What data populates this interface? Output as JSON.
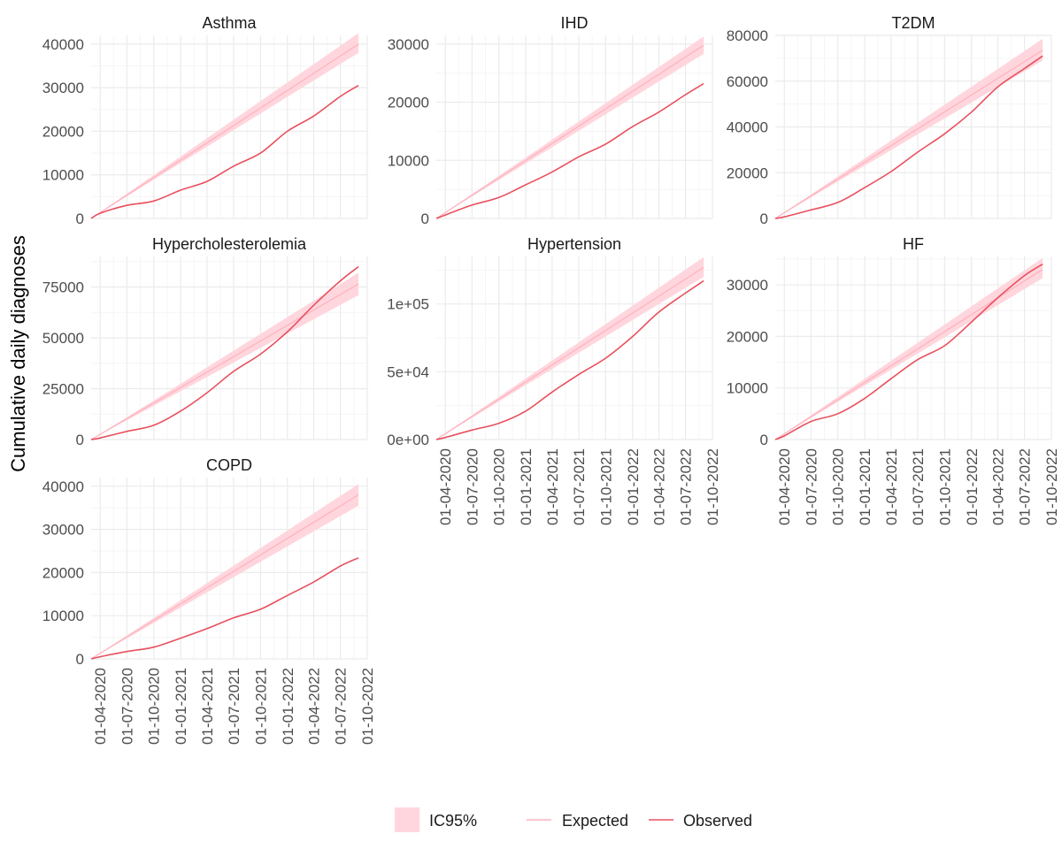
{
  "chart_data": {
    "type": "line",
    "ylabel": "Cumulative daily diagnoses",
    "xlabel": "",
    "x_ticks": [
      "01-04-2020",
      "01-07-2020",
      "01-10-2020",
      "01-01-2021",
      "01-04-2021",
      "01-07-2021",
      "01-10-2021",
      "01-01-2022",
      "01-04-2022",
      "01-07-2022",
      "01-10-2022"
    ],
    "x_range": [
      "2020-03-01",
      "2022-10-01"
    ],
    "legend": {
      "placement": "bottom",
      "items": [
        {
          "label": "IC95%",
          "kind": "ribbon",
          "color": "#ffd6dd"
        },
        {
          "label": "Expected",
          "kind": "line",
          "color": "#ffb3bf"
        },
        {
          "label": "Observed",
          "kind": "line",
          "color": "#e8505e"
        }
      ]
    },
    "colors": {
      "ribbon": "#ffd6dd",
      "expected": "#ffb3bf",
      "observed": "#e8505e",
      "grid_major": "#ebebeb",
      "grid_minor": "#f5f5f5"
    },
    "panels": [
      {
        "title": "Asthma",
        "ylim": [
          0,
          42000
        ],
        "y_ticks": [
          0,
          10000,
          20000,
          30000,
          40000
        ],
        "y_tick_labels": [
          "0",
          "10000",
          "20000",
          "30000",
          "40000"
        ],
        "expected": [
          [
            "2020-03-01",
            0
          ],
          [
            "2022-09-01",
            40000
          ]
        ],
        "ic_low": [
          [
            "2020-03-01",
            0
          ],
          [
            "2022-09-01",
            38000
          ]
        ],
        "ic_high": [
          [
            "2020-03-01",
            0
          ],
          [
            "2022-09-01",
            42500
          ]
        ],
        "observed": [
          [
            "2020-03-01",
            0
          ],
          [
            "2020-04-01",
            1200
          ],
          [
            "2020-07-01",
            3000
          ],
          [
            "2020-10-01",
            4000
          ],
          [
            "2021-01-01",
            6500
          ],
          [
            "2021-04-01",
            8500
          ],
          [
            "2021-07-01",
            12000
          ],
          [
            "2021-10-01",
            15000
          ],
          [
            "2022-01-01",
            20000
          ],
          [
            "2022-04-01",
            23500
          ],
          [
            "2022-07-01",
            28000
          ],
          [
            "2022-09-01",
            30500
          ]
        ]
      },
      {
        "title": "IHD",
        "ylim": [
          0,
          31500
        ],
        "y_ticks": [
          0,
          10000,
          20000,
          30000
        ],
        "y_tick_labels": [
          "0",
          "10000",
          "20000",
          "30000"
        ],
        "expected": [
          [
            "2020-03-01",
            0
          ],
          [
            "2022-09-01",
            29800
          ]
        ],
        "ic_low": [
          [
            "2020-03-01",
            0
          ],
          [
            "2022-09-01",
            28300
          ]
        ],
        "ic_high": [
          [
            "2020-03-01",
            0
          ],
          [
            "2022-09-01",
            31300
          ]
        ],
        "observed": [
          [
            "2020-03-01",
            0
          ],
          [
            "2020-04-01",
            600
          ],
          [
            "2020-07-01",
            2300
          ],
          [
            "2020-10-01",
            3600
          ],
          [
            "2021-01-01",
            5800
          ],
          [
            "2021-04-01",
            8000
          ],
          [
            "2021-07-01",
            10600
          ],
          [
            "2021-10-01",
            12800
          ],
          [
            "2022-01-01",
            15800
          ],
          [
            "2022-04-01",
            18300
          ],
          [
            "2022-07-01",
            21300
          ],
          [
            "2022-09-01",
            23200
          ]
        ]
      },
      {
        "title": "T2DM",
        "ylim": [
          0,
          80000
        ],
        "y_ticks": [
          0,
          20000,
          40000,
          60000,
          80000
        ],
        "y_tick_labels": [
          "0",
          "20000",
          "40000",
          "60000",
          "80000"
        ],
        "expected": [
          [
            "2020-03-01",
            0
          ],
          [
            "2022-09-01",
            73500
          ]
        ],
        "ic_low": [
          [
            "2020-03-01",
            0
          ],
          [
            "2022-09-01",
            69000
          ]
        ],
        "ic_high": [
          [
            "2020-03-01",
            0
          ],
          [
            "2022-09-01",
            78500
          ]
        ],
        "observed": [
          [
            "2020-03-01",
            0
          ],
          [
            "2020-04-01",
            700
          ],
          [
            "2020-07-01",
            3700
          ],
          [
            "2020-10-01",
            7000
          ],
          [
            "2021-01-01",
            13500
          ],
          [
            "2021-04-01",
            20500
          ],
          [
            "2021-07-01",
            29000
          ],
          [
            "2021-10-01",
            37000
          ],
          [
            "2022-01-01",
            46500
          ],
          [
            "2022-04-01",
            57500
          ],
          [
            "2022-07-01",
            65500
          ],
          [
            "2022-09-01",
            71000
          ]
        ]
      },
      {
        "title": "Hypercholesterolemia",
        "ylim": [
          0,
          90000
        ],
        "y_ticks": [
          0,
          25000,
          50000,
          75000
        ],
        "y_tick_labels": [
          "0",
          "25000",
          "50000",
          "75000"
        ],
        "expected": [
          [
            "2020-03-01",
            0
          ],
          [
            "2022-09-01",
            76500
          ]
        ],
        "ic_low": [
          [
            "2020-03-01",
            0
          ],
          [
            "2022-09-01",
            71000
          ]
        ],
        "ic_high": [
          [
            "2020-03-01",
            0
          ],
          [
            "2022-09-01",
            82000
          ]
        ],
        "observed": [
          [
            "2020-03-01",
            0
          ],
          [
            "2020-04-01",
            800
          ],
          [
            "2020-07-01",
            4000
          ],
          [
            "2020-10-01",
            7000
          ],
          [
            "2021-01-01",
            14000
          ],
          [
            "2021-04-01",
            23000
          ],
          [
            "2021-07-01",
            33500
          ],
          [
            "2021-10-01",
            42000
          ],
          [
            "2022-01-01",
            53000
          ],
          [
            "2022-04-01",
            66000
          ],
          [
            "2022-07-01",
            78000
          ],
          [
            "2022-09-01",
            85000
          ]
        ]
      },
      {
        "title": "Hypertension",
        "ylim": [
          0,
          135000
        ],
        "y_ticks": [
          0,
          50000,
          100000
        ],
        "y_tick_labels": [
          "0e+00",
          "5e+04",
          "1e+05"
        ],
        "expected": [
          [
            "2020-03-01",
            0
          ],
          [
            "2022-09-01",
            127000
          ]
        ],
        "ic_low": [
          [
            "2020-03-01",
            0
          ],
          [
            "2022-09-01",
            120000
          ]
        ],
        "ic_high": [
          [
            "2020-03-01",
            0
          ],
          [
            "2022-09-01",
            134500
          ]
        ],
        "observed": [
          [
            "2020-03-01",
            0
          ],
          [
            "2020-04-01",
            1500
          ],
          [
            "2020-07-01",
            7000
          ],
          [
            "2020-10-01",
            12000
          ],
          [
            "2021-01-01",
            21000
          ],
          [
            "2021-04-01",
            35000
          ],
          [
            "2021-07-01",
            48000
          ],
          [
            "2021-10-01",
            60000
          ],
          [
            "2022-01-01",
            76000
          ],
          [
            "2022-04-01",
            94000
          ],
          [
            "2022-07-01",
            108000
          ],
          [
            "2022-09-01",
            117000
          ]
        ]
      },
      {
        "title": "HF",
        "ylim": [
          0,
          35500
        ],
        "y_ticks": [
          0,
          10000,
          20000,
          30000
        ],
        "y_tick_labels": [
          "0",
          "10000",
          "20000",
          "30000"
        ],
        "expected": [
          [
            "2020-03-01",
            0
          ],
          [
            "2022-09-01",
            33000
          ]
        ],
        "ic_low": [
          [
            "2020-03-01",
            0
          ],
          [
            "2022-09-01",
            31300
          ]
        ],
        "ic_high": [
          [
            "2020-03-01",
            0
          ],
          [
            "2022-09-01",
            35200
          ]
        ],
        "observed": [
          [
            "2020-03-01",
            0
          ],
          [
            "2020-04-01",
            700
          ],
          [
            "2020-07-01",
            3500
          ],
          [
            "2020-10-01",
            5000
          ],
          [
            "2021-01-01",
            8000
          ],
          [
            "2021-04-01",
            11800
          ],
          [
            "2021-07-01",
            15500
          ],
          [
            "2021-10-01",
            18200
          ],
          [
            "2022-01-01",
            22800
          ],
          [
            "2022-04-01",
            27500
          ],
          [
            "2022-07-01",
            31800
          ],
          [
            "2022-09-01",
            34000
          ]
        ]
      },
      {
        "title": "COPD",
        "ylim": [
          0,
          42000
        ],
        "y_ticks": [
          0,
          10000,
          20000,
          30000,
          40000
        ],
        "y_tick_labels": [
          "0",
          "10000",
          "20000",
          "30000",
          "40000"
        ],
        "expected": [
          [
            "2020-03-01",
            0
          ],
          [
            "2022-09-01",
            38000
          ]
        ],
        "ic_low": [
          [
            "2020-03-01",
            0
          ],
          [
            "2022-09-01",
            35500
          ]
        ],
        "ic_high": [
          [
            "2020-03-01",
            0
          ],
          [
            "2022-09-01",
            40500
          ]
        ],
        "observed": [
          [
            "2020-03-01",
            0
          ],
          [
            "2020-04-01",
            500
          ],
          [
            "2020-07-01",
            1700
          ],
          [
            "2020-10-01",
            2700
          ],
          [
            "2021-01-01",
            4800
          ],
          [
            "2021-04-01",
            7000
          ],
          [
            "2021-07-01",
            9500
          ],
          [
            "2021-10-01",
            11500
          ],
          [
            "2022-01-01",
            14700
          ],
          [
            "2022-04-01",
            17800
          ],
          [
            "2022-07-01",
            21500
          ],
          [
            "2022-09-01",
            23400
          ]
        ]
      }
    ]
  }
}
